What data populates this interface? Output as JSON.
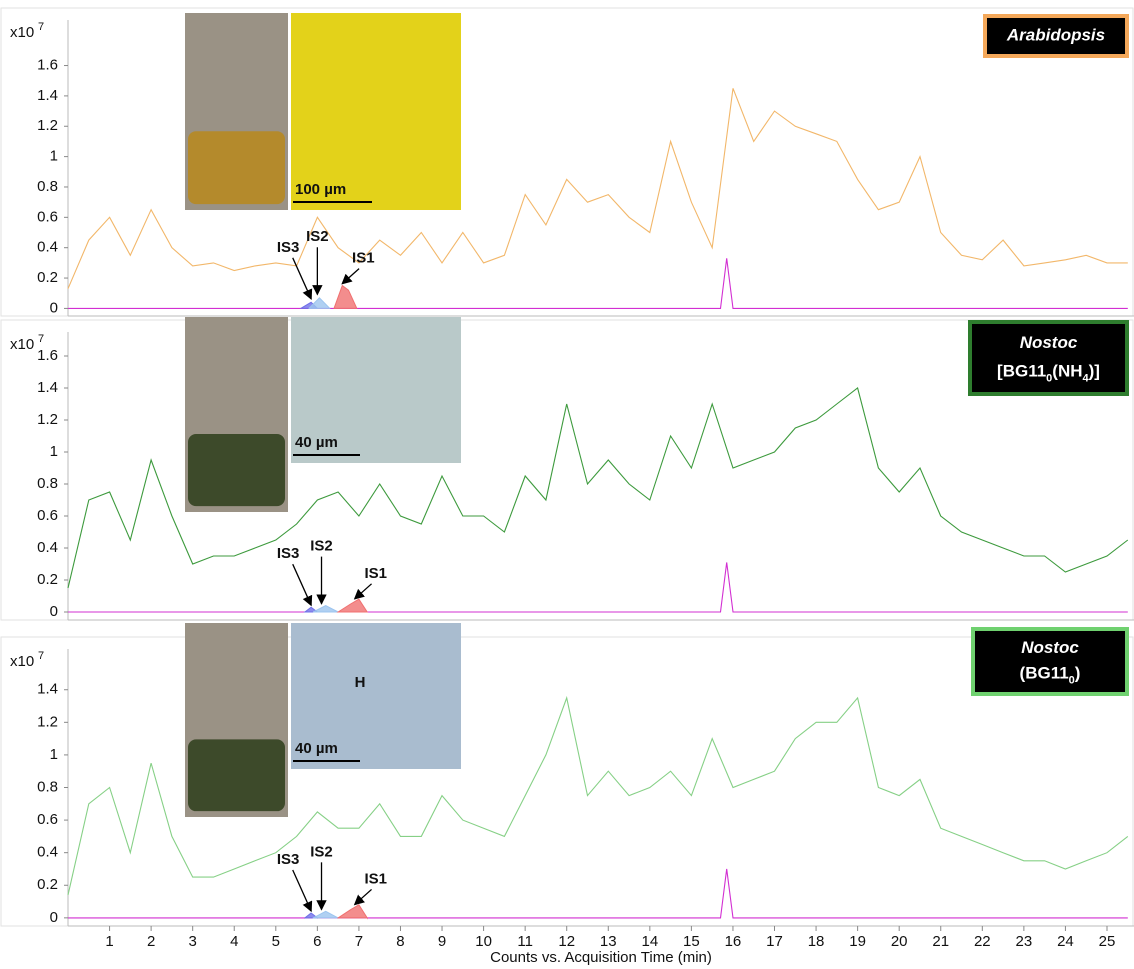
{
  "chart_data": [
    {
      "type": "line",
      "y_scale": "x10",
      "y_scale_exponent": "7",
      "xlim": [
        0,
        25.65
      ],
      "ylim": [
        -0.05,
        1.9
      ],
      "yticks": [
        0,
        0.2,
        0.4,
        0.6,
        0.8,
        1,
        1.2,
        1.4,
        1.6
      ],
      "sample_name": "Arabidopsis",
      "label_border_color": "#f4a85a",
      "scale_bar": "100 µm",
      "micrograph_color": "#e3d21a",
      "series": [
        {
          "color": "#f2b76a",
          "x": [
            0,
            0.5,
            1,
            1.5,
            2,
            2.5,
            3,
            3.5,
            4,
            4.5,
            5,
            5.5,
            6,
            6.5,
            7,
            7.5,
            8,
            8.5,
            9,
            9.5,
            10,
            10.5,
            11,
            11.5,
            12,
            12.5,
            13,
            13.5,
            14,
            14.5,
            15,
            15.5,
            16,
            16.5,
            17,
            17.5,
            18,
            18.5,
            19,
            19.5,
            20,
            20.5,
            21,
            21.5,
            22,
            22.5,
            23,
            23.5,
            24,
            24.5,
            25,
            25.5
          ],
          "values": [
            0.13,
            0.45,
            0.6,
            0.35,
            0.65,
            0.4,
            0.28,
            0.3,
            0.25,
            0.28,
            0.3,
            0.28,
            0.6,
            0.4,
            0.3,
            0.45,
            0.35,
            0.5,
            0.3,
            0.5,
            0.3,
            0.35,
            0.75,
            0.55,
            0.85,
            0.7,
            0.75,
            0.6,
            0.5,
            1.1,
            0.7,
            0.4,
            1.45,
            1.1,
            1.3,
            1.2,
            1.15,
            1.1,
            0.85,
            0.65,
            0.7,
            1.0,
            0.5,
            0.35,
            0.32,
            0.45,
            0.28,
            0.3,
            0.32,
            0.35,
            0.3,
            0.3
          ]
        },
        {
          "color": "#d22fd2",
          "x": [
            0,
            15.7,
            15.85,
            16.0,
            25.5
          ],
          "values": [
            0,
            0,
            0.33,
            0,
            0
          ]
        },
        {
          "color": "#6f6fe8",
          "fill": true,
          "x": [
            5.6,
            5.85,
            6.0
          ],
          "values": [
            0,
            0.04,
            0
          ]
        },
        {
          "color": "#9cc4ef",
          "fill": true,
          "x": [
            5.8,
            6.05,
            6.3
          ],
          "values": [
            0,
            0.07,
            0
          ]
        },
        {
          "color": "#f07070",
          "fill": true,
          "x": [
            6.4,
            6.6,
            6.75,
            6.95
          ],
          "values": [
            0,
            0.15,
            0.12,
            0
          ]
        }
      ],
      "annotations": [
        {
          "text": "IS3",
          "x": 5.85,
          "y": 0.05
        },
        {
          "text": "IS2",
          "x": 6.0,
          "y": 0.08
        },
        {
          "text": "IS1",
          "x": 6.6,
          "y": 0.15
        }
      ]
    },
    {
      "type": "line",
      "y_scale": "x10",
      "y_scale_exponent": "7",
      "xlim": [
        0,
        25.65
      ],
      "ylim": [
        -0.05,
        1.75
      ],
      "yticks": [
        0,
        0.2,
        0.4,
        0.6,
        0.8,
        1,
        1.2,
        1.4,
        1.6
      ],
      "sample_name": "Nostoc",
      "sample_medium": [
        {
          "text": "[BG11"
        },
        {
          "text": "0",
          "sub": true
        },
        {
          "text": "(NH"
        },
        {
          "text": "4",
          "sub": true
        },
        {
          "text": ")]"
        }
      ],
      "label_border_color": "#2e7d2e",
      "scale_bar": "40 µm",
      "micrograph_color": "#b9c9c9",
      "series": [
        {
          "color": "#3d9a3d",
          "x": [
            0,
            0.5,
            1,
            1.5,
            2,
            2.5,
            3,
            3.5,
            4,
            4.5,
            5,
            5.5,
            6,
            6.5,
            7,
            7.5,
            8,
            8.5,
            9,
            9.5,
            10,
            10.5,
            11,
            11.5,
            12,
            12.5,
            13,
            13.5,
            14,
            14.5,
            15,
            15.5,
            16,
            16.5,
            17,
            17.5,
            18,
            18.5,
            19,
            19.5,
            20,
            20.5,
            21,
            21.5,
            22,
            22.5,
            23,
            23.5,
            24,
            24.5,
            25,
            25.5
          ],
          "values": [
            0.15,
            0.7,
            0.75,
            0.45,
            0.95,
            0.6,
            0.3,
            0.35,
            0.35,
            0.4,
            0.45,
            0.55,
            0.7,
            0.75,
            0.6,
            0.8,
            0.6,
            0.55,
            0.85,
            0.6,
            0.6,
            0.5,
            0.85,
            0.7,
            1.3,
            0.8,
            0.95,
            0.8,
            0.7,
            1.1,
            0.9,
            1.3,
            0.9,
            0.95,
            1.0,
            1.15,
            1.2,
            1.3,
            1.4,
            0.9,
            0.75,
            0.9,
            0.6,
            0.5,
            0.45,
            0.4,
            0.35,
            0.35,
            0.25,
            0.3,
            0.35,
            0.45
          ]
        },
        {
          "color": "#d22fd2",
          "x": [
            0,
            15.7,
            15.85,
            16.0,
            25.5
          ],
          "values": [
            0,
            0,
            0.31,
            0,
            0
          ]
        },
        {
          "color": "#6f6fe8",
          "fill": true,
          "x": [
            5.7,
            5.85,
            6.0
          ],
          "values": [
            0,
            0.03,
            0
          ]
        },
        {
          "color": "#9cc4ef",
          "fill": true,
          "x": [
            5.9,
            6.2,
            6.5
          ],
          "values": [
            0,
            0.04,
            0
          ]
        },
        {
          "color": "#f07070",
          "fill": true,
          "x": [
            6.5,
            6.8,
            7.0,
            7.2
          ],
          "values": [
            0,
            0.05,
            0.08,
            0
          ]
        }
      ],
      "annotations": [
        {
          "text": "IS3",
          "x": 5.85,
          "y": 0.03
        },
        {
          "text": "IS2",
          "x": 6.1,
          "y": 0.04
        },
        {
          "text": "IS1",
          "x": 6.9,
          "y": 0.07
        }
      ]
    },
    {
      "type": "line",
      "y_scale": "x10",
      "y_scale_exponent": "7",
      "xlim": [
        0,
        25.65
      ],
      "ylim": [
        -0.05,
        1.65
      ],
      "yticks": [
        0,
        0.2,
        0.4,
        0.6,
        0.8,
        1,
        1.2,
        1.4
      ],
      "xticks": [
        1,
        2,
        3,
        4,
        5,
        6,
        7,
        8,
        9,
        10,
        11,
        12,
        13,
        14,
        15,
        16,
        17,
        18,
        19,
        20,
        21,
        22,
        23,
        24,
        25
      ],
      "xlabel": "Counts vs. Acquisition Time (min)",
      "sample_name": "Nostoc",
      "sample_medium": [
        {
          "text": "(BG11"
        },
        {
          "text": "0",
          "sub": true
        },
        {
          "text": ")"
        }
      ],
      "label_border_color": "#6fd16f",
      "scale_bar": "40 µm",
      "cell_label": "H",
      "micrograph_color": "#a9bccf",
      "series": [
        {
          "color": "#86d086",
          "x": [
            0,
            0.5,
            1,
            1.5,
            2,
            2.5,
            3,
            3.5,
            4,
            4.5,
            5,
            5.5,
            6,
            6.5,
            7,
            7.5,
            8,
            8.5,
            9,
            9.5,
            10,
            10.5,
            11,
            11.5,
            12,
            12.5,
            13,
            13.5,
            14,
            14.5,
            15,
            15.5,
            16,
            16.5,
            17,
            17.5,
            18,
            18.5,
            19,
            19.5,
            20,
            20.5,
            21,
            21.5,
            22,
            22.5,
            23,
            23.5,
            24,
            24.5,
            25,
            25.5
          ],
          "values": [
            0.14,
            0.7,
            0.8,
            0.4,
            0.95,
            0.5,
            0.25,
            0.25,
            0.3,
            0.35,
            0.4,
            0.5,
            0.65,
            0.55,
            0.55,
            0.7,
            0.5,
            0.5,
            0.75,
            0.6,
            0.55,
            0.5,
            0.75,
            1.0,
            1.35,
            0.75,
            0.9,
            0.75,
            0.8,
            0.9,
            0.75,
            1.1,
            0.8,
            0.85,
            0.9,
            1.1,
            1.2,
            1.2,
            1.35,
            0.8,
            0.75,
            0.85,
            0.55,
            0.5,
            0.45,
            0.4,
            0.35,
            0.35,
            0.3,
            0.35,
            0.4,
            0.5
          ]
        },
        {
          "color": "#d22fd2",
          "x": [
            0,
            15.7,
            15.85,
            16.0,
            25.5
          ],
          "values": [
            0,
            0,
            0.3,
            0,
            0
          ]
        },
        {
          "color": "#6f6fe8",
          "fill": true,
          "x": [
            5.7,
            5.85,
            6.0
          ],
          "values": [
            0,
            0.03,
            0
          ]
        },
        {
          "color": "#9cc4ef",
          "fill": true,
          "x": [
            5.9,
            6.2,
            6.5
          ],
          "values": [
            0,
            0.04,
            0
          ]
        },
        {
          "color": "#f07070",
          "fill": true,
          "x": [
            6.5,
            6.8,
            7.0,
            7.2
          ],
          "values": [
            0,
            0.05,
            0.08,
            0
          ]
        }
      ],
      "annotations": [
        {
          "text": "IS3",
          "x": 5.85,
          "y": 0.03
        },
        {
          "text": "IS2",
          "x": 6.1,
          "y": 0.04
        },
        {
          "text": "IS1",
          "x": 6.9,
          "y": 0.07
        }
      ]
    }
  ]
}
